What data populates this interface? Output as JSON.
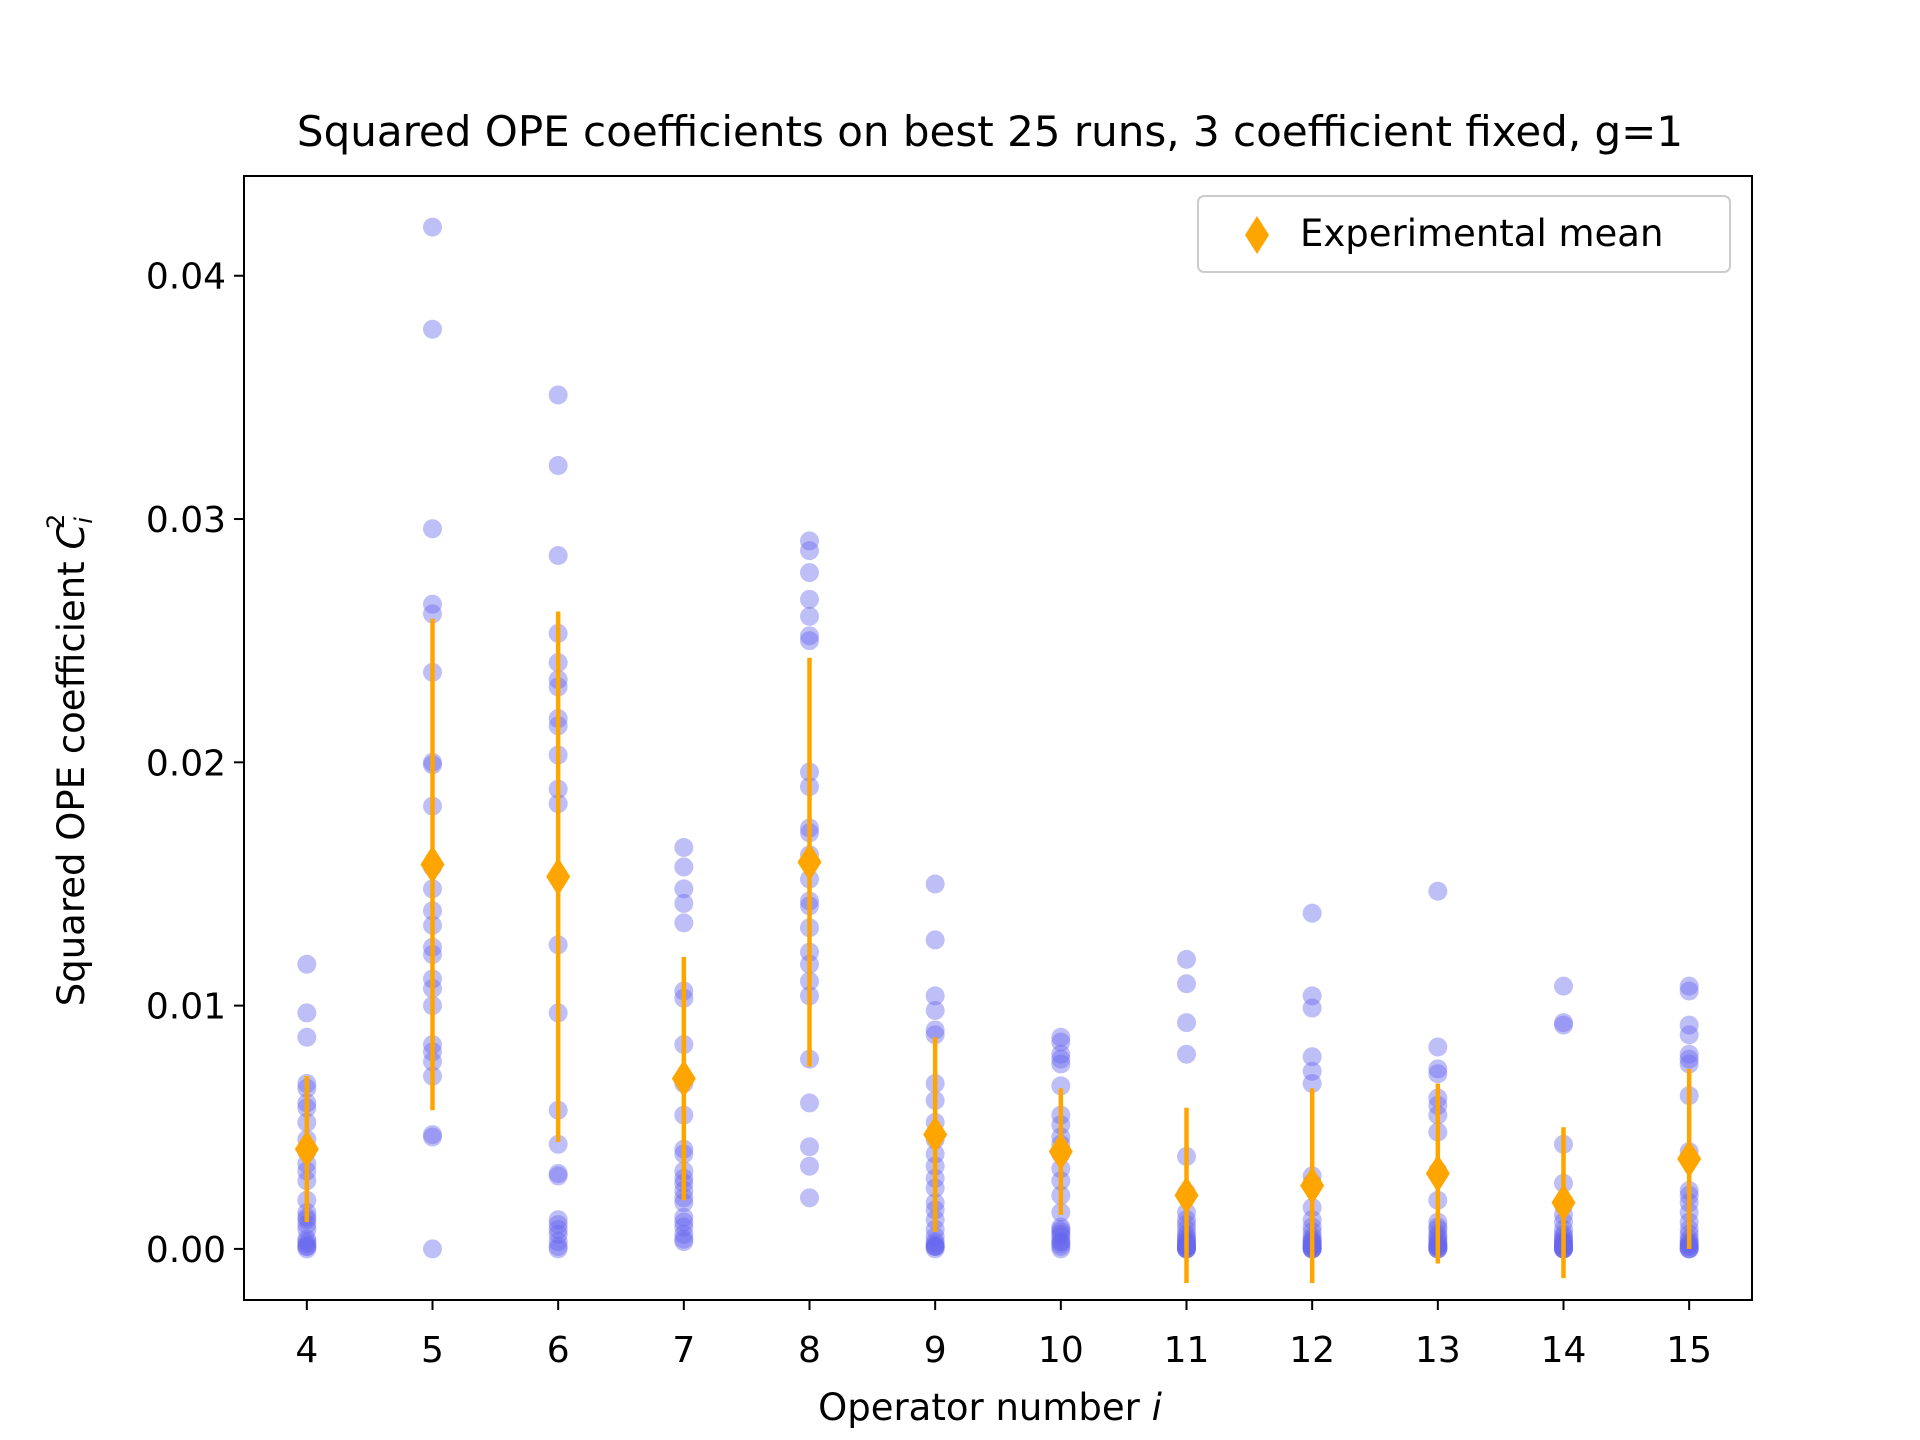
{
  "chart_data": {
    "type": "scatter",
    "title": "Squared OPE coefficients on best 25 runs, 3 coefficient fixed, g=1",
    "xlabel_text": "Operator number ",
    "xlabel_var": "i",
    "ylabel_text": "Squared OPE coefficient ",
    "ylabel_var": "C",
    "ylabel_sub": "i",
    "ylabel_sup": "2",
    "x_ticks": [
      "4",
      "5",
      "6",
      "7",
      "8",
      "9",
      "10",
      "11",
      "12",
      "13",
      "14",
      "15"
    ],
    "y_ticks": [
      "0.00",
      "0.01",
      "0.02",
      "0.03",
      "0.04"
    ],
    "xlim": [
      3.5,
      15.5
    ],
    "ylim": [
      -0.0021,
      0.0441
    ],
    "legend": {
      "label": "Experimental mean",
      "placement": "top-right"
    },
    "colors": {
      "runs": "#6666ee",
      "mean": "#ffa500"
    },
    "series": [
      {
        "x": 4,
        "runs": [
          0.0117,
          0.0097,
          0.0087,
          0.0068,
          0.0066,
          0.006,
          0.0058,
          0.0052,
          0.0045,
          0.004,
          0.0035,
          0.0032,
          0.0028,
          0.002,
          0.0015,
          0.0013,
          0.0012,
          0.001,
          0.0008,
          0.0004,
          0.0003,
          0.0002,
          0.0001,
          0.0001,
          0.0
        ],
        "mean": 0.0041,
        "err": 0.003
      },
      {
        "x": 5,
        "runs": [
          0.042,
          0.0378,
          0.0296,
          0.0265,
          0.0261,
          0.0237,
          0.02,
          0.0199,
          0.0182,
          0.0157,
          0.0148,
          0.0139,
          0.0133,
          0.0124,
          0.0121,
          0.0111,
          0.0107,
          0.01,
          0.0084,
          0.0081,
          0.0077,
          0.0071,
          0.0047,
          0.0046,
          0.0
        ],
        "mean": 0.0158,
        "err": 0.0101
      },
      {
        "x": 6,
        "runs": [
          0.0351,
          0.0322,
          0.0285,
          0.0253,
          0.0241,
          0.0234,
          0.0231,
          0.0218,
          0.0215,
          0.0203,
          0.0189,
          0.0183,
          0.0125,
          0.0097,
          0.0057,
          0.0043,
          0.0031,
          0.003,
          0.0012,
          0.001,
          0.0008,
          0.0006,
          0.0003,
          0.0001,
          0.0
        ],
        "mean": 0.0153,
        "err": 0.0109
      },
      {
        "x": 7,
        "runs": [
          0.0165,
          0.0157,
          0.0148,
          0.0142,
          0.0134,
          0.0106,
          0.0103,
          0.0084,
          0.007,
          0.0068,
          0.0055,
          0.0041,
          0.0039,
          0.0032,
          0.0029,
          0.0024,
          0.0021,
          0.0013,
          0.0009,
          0.0006,
          0.0003,
          0.0004,
          0.0011,
          0.0019,
          0.0027
        ],
        "mean": 0.007,
        "err": 0.005
      },
      {
        "x": 8,
        "runs": [
          0.0291,
          0.0287,
          0.0278,
          0.0267,
          0.026,
          0.0252,
          0.025,
          0.0196,
          0.019,
          0.0173,
          0.0171,
          0.0162,
          0.0152,
          0.0143,
          0.0141,
          0.0132,
          0.0122,
          0.0117,
          0.011,
          0.0104,
          0.0078,
          0.006,
          0.0042,
          0.0034,
          0.0021
        ],
        "mean": 0.0159,
        "err": 0.0084
      },
      {
        "x": 9,
        "runs": [
          0.015,
          0.0127,
          0.0104,
          0.0098,
          0.009,
          0.0088,
          0.0068,
          0.0061,
          0.0052,
          0.0045,
          0.0039,
          0.0034,
          0.0029,
          0.0025,
          0.0019,
          0.0016,
          0.0012,
          0.0008,
          0.0005,
          0.0003,
          0.0002,
          0.0001,
          0.0001,
          0.0001,
          0.0
        ],
        "mean": 0.0047,
        "err": 0.004
      },
      {
        "x": 10,
        "runs": [
          0.0087,
          0.0085,
          0.008,
          0.0078,
          0.0076,
          0.0067,
          0.0055,
          0.0051,
          0.0046,
          0.0043,
          0.0039,
          0.0033,
          0.0028,
          0.0022,
          0.0015,
          0.0009,
          0.0008,
          0.0007,
          0.0006,
          0.0005,
          0.0003,
          0.0003,
          0.0002,
          0.0001,
          0.0
        ],
        "mean": 0.004,
        "err": 0.0026
      },
      {
        "x": 11,
        "runs": [
          0.0119,
          0.0109,
          0.0093,
          0.008,
          0.0038,
          0.0023,
          0.0015,
          0.0012,
          0.001,
          0.0008,
          0.0006,
          0.0005,
          0.0004,
          0.0003,
          0.0003,
          0.0002,
          0.0002,
          0.0001,
          0.0001,
          0.0001,
          0.0001,
          0.0,
          0.0,
          0.0,
          0.0
        ],
        "mean": 0.0022,
        "err": 0.0036
      },
      {
        "x": 12,
        "runs": [
          0.0138,
          0.0104,
          0.0099,
          0.0079,
          0.0073,
          0.0068,
          0.003,
          0.0027,
          0.0017,
          0.0012,
          0.0009,
          0.0007,
          0.0005,
          0.0004,
          0.0003,
          0.0003,
          0.0002,
          0.0002,
          0.0001,
          0.0001,
          0.0001,
          0.0,
          0.0,
          0.0,
          0.0
        ],
        "mean": 0.0026,
        "err": 0.004
      },
      {
        "x": 13,
        "runs": [
          0.0147,
          0.0083,
          0.0074,
          0.0072,
          0.0062,
          0.0059,
          0.0055,
          0.0048,
          0.0032,
          0.002,
          0.0011,
          0.0009,
          0.0008,
          0.0006,
          0.0005,
          0.0004,
          0.0003,
          0.0002,
          0.0002,
          0.0001,
          0.0001,
          0.0001,
          0.0,
          0.0,
          0.0
        ],
        "mean": 0.0031,
        "err": 0.0037
      },
      {
        "x": 14,
        "runs": [
          0.0108,
          0.0093,
          0.0092,
          0.0043,
          0.0027,
          0.0018,
          0.0014,
          0.0011,
          0.0008,
          0.0006,
          0.0005,
          0.0004,
          0.0003,
          0.0003,
          0.0002,
          0.0002,
          0.0001,
          0.0001,
          0.0001,
          0.0001,
          0.0,
          0.0,
          0.0,
          0.0,
          0.0
        ],
        "mean": 0.0019,
        "err": 0.0031
      },
      {
        "x": 15,
        "runs": [
          0.0108,
          0.0106,
          0.0092,
          0.0088,
          0.008,
          0.0078,
          0.0076,
          0.0063,
          0.004,
          0.0024,
          0.0022,
          0.0019,
          0.0015,
          0.0011,
          0.0008,
          0.0006,
          0.0004,
          0.0003,
          0.0002,
          0.0002,
          0.0001,
          0.0001,
          0.0,
          0.0,
          0.0
        ],
        "mean": 0.0037,
        "err": 0.0037
      }
    ]
  }
}
